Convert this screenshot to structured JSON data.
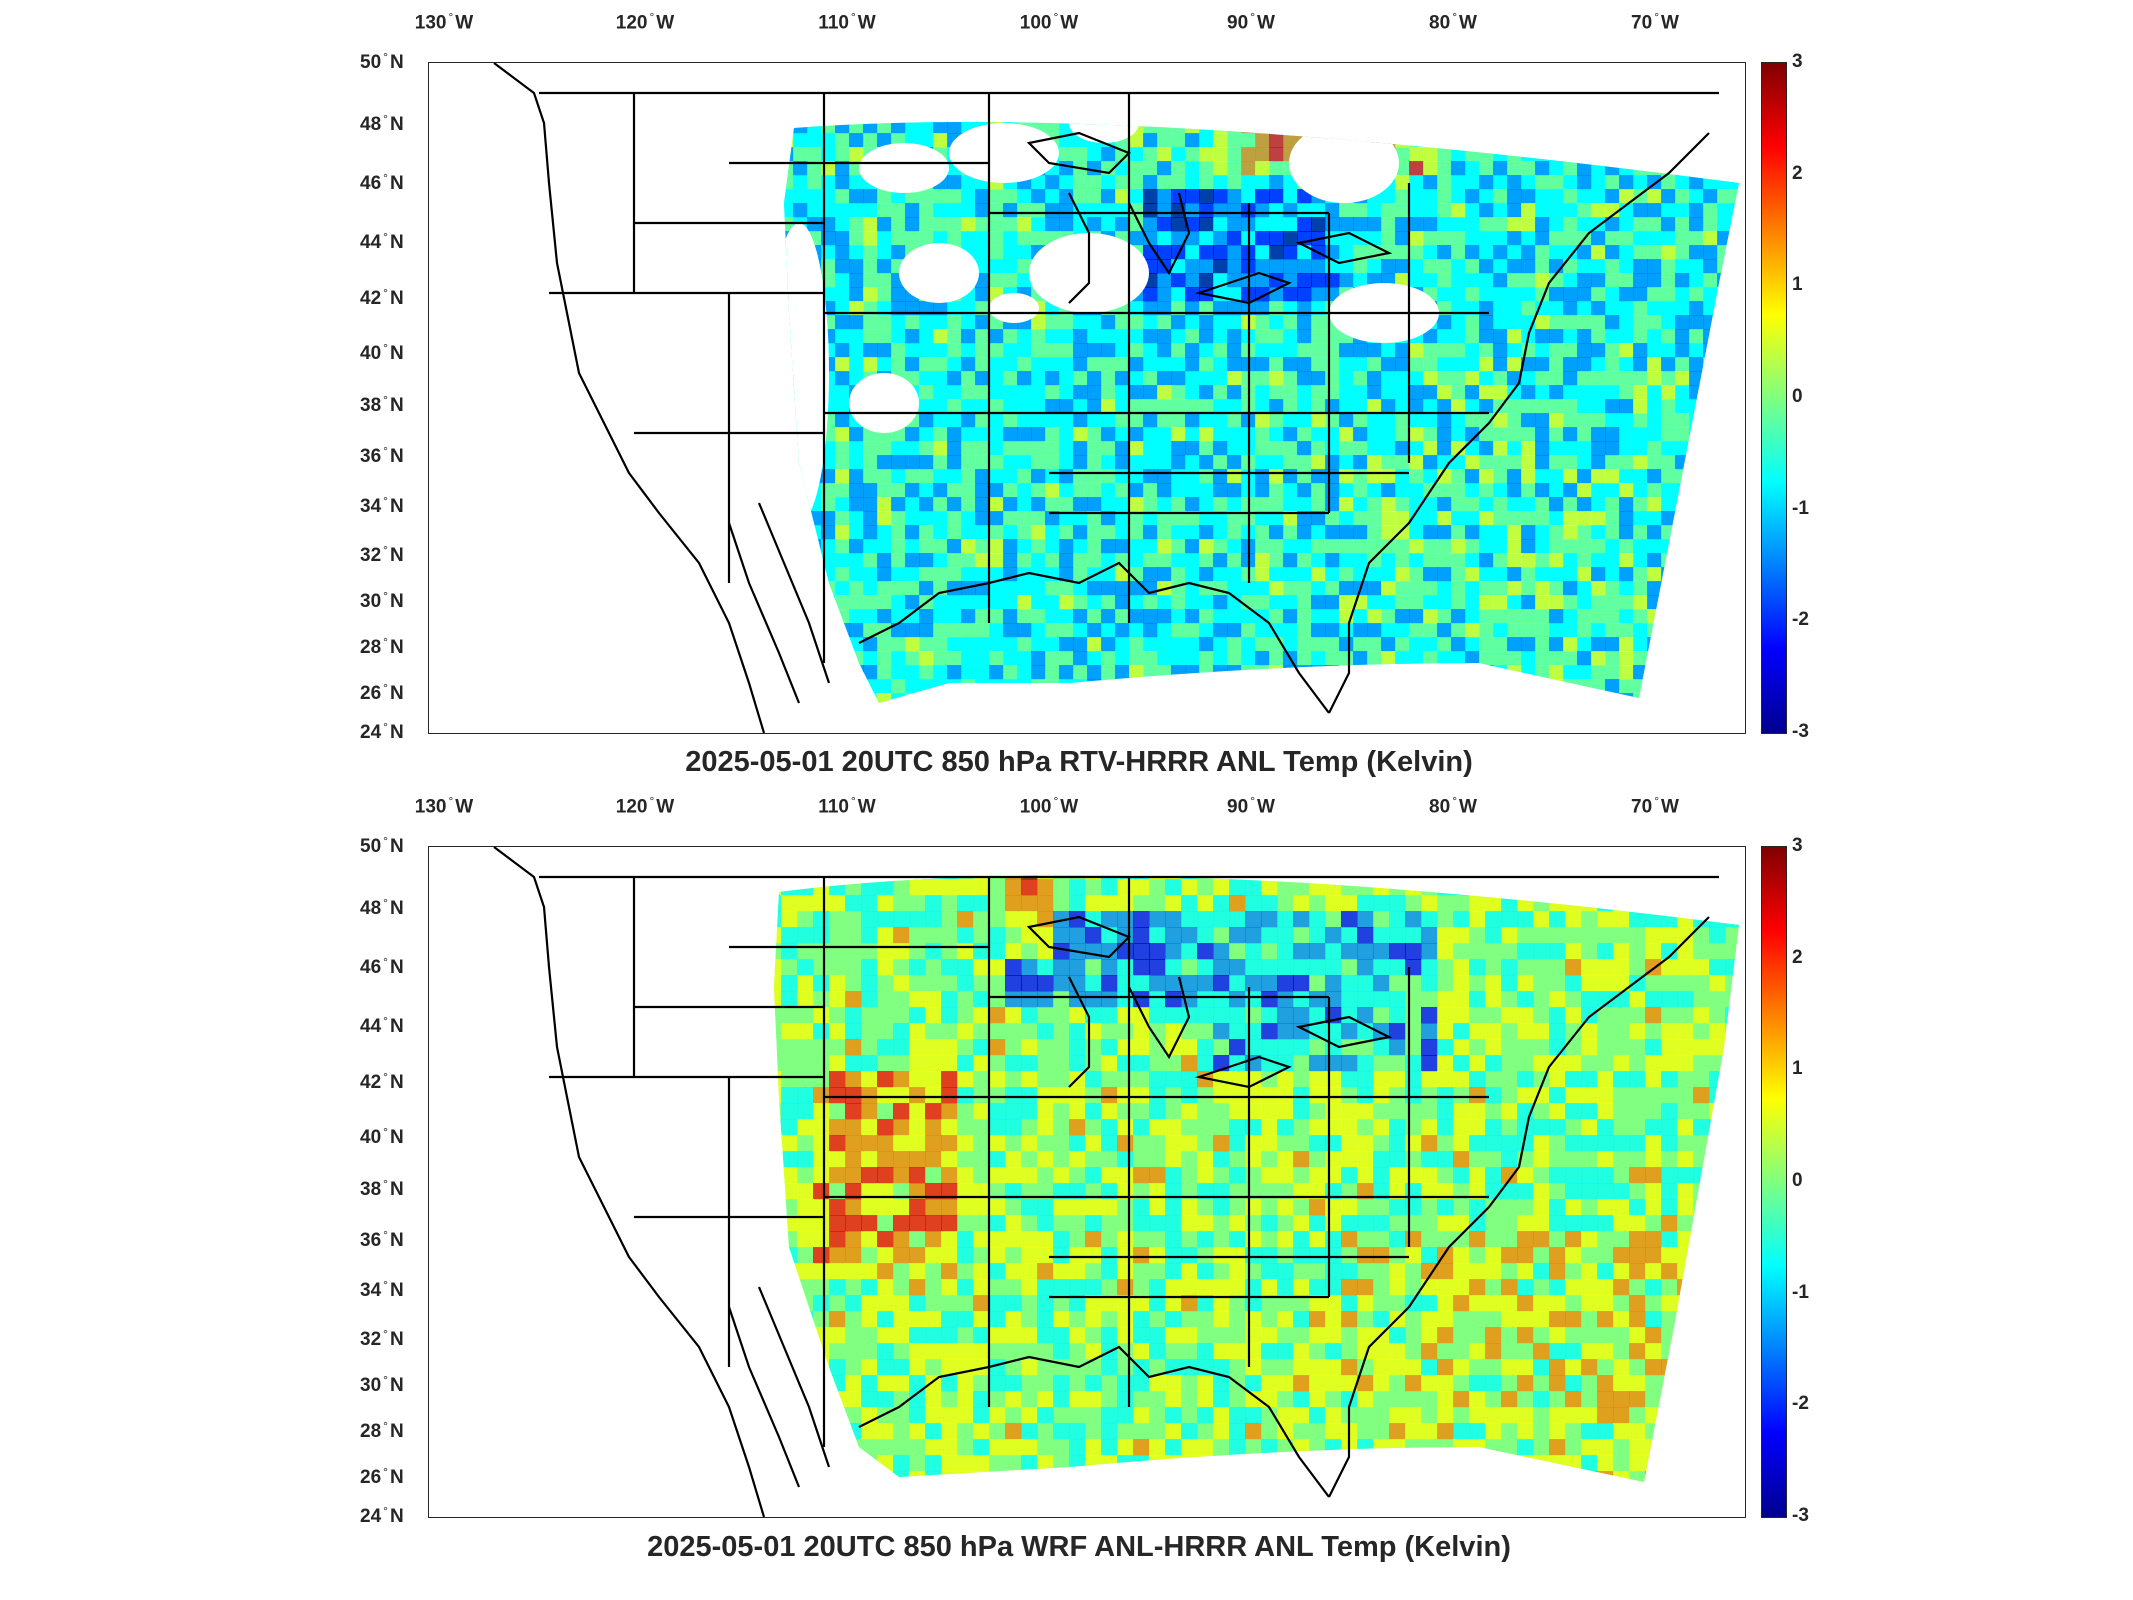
{
  "lon_ticks": [
    "130",
    "120",
    "110",
    "100",
    "90",
    "80",
    "70"
  ],
  "lon_suffix": "W",
  "lat_ticks": [
    "50",
    "48",
    "46",
    "44",
    "42",
    "40",
    "38",
    "36",
    "34",
    "32",
    "30",
    "28",
    "26",
    "24"
  ],
  "lat_suffix": "N",
  "colorbar": {
    "ticks": [
      "3",
      "2",
      "1",
      "0",
      "-1",
      "-2",
      "-3"
    ],
    "range": [
      -3,
      3
    ],
    "colormap": [
      "#00008f",
      "#0000ff",
      "#0080ff",
      "#00ffff",
      "#80ff80",
      "#ffff00",
      "#ff8000",
      "#ff0000",
      "#800000"
    ]
  },
  "panels": [
    {
      "title": "2025-05-01 20UTC 850 hPa RTV-HRRR ANL Temp (Kelvin)",
      "field_bias": -0.6,
      "coverage": "sparse"
    },
    {
      "title": "2025-05-01 20UTC 850 hPa WRF ANL-HRRR ANL Temp (Kelvin)",
      "field_bias": 0.1,
      "coverage": "full"
    }
  ]
}
